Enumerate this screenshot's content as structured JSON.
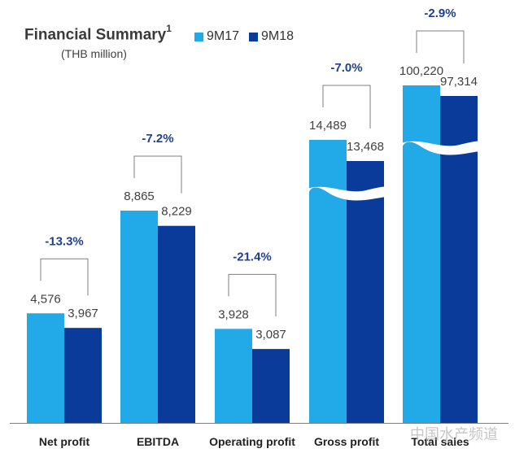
{
  "header": {
    "title": "Financial Summary",
    "title_sup": "1",
    "subtitle": "(THB million)"
  },
  "watermark": "中国水产频道",
  "colors": {
    "series_9M17": "#21a9e8",
    "series_9M18": "#0a3b9a",
    "bracket": "#7f7f7f",
    "pct_text": "#1f3f8f"
  },
  "chart_data": {
    "type": "bar",
    "categories": [
      "Net profit",
      "EBITDA",
      "Operating profit",
      "Gross profit",
      "Total sales"
    ],
    "series": [
      {
        "name": "9M17",
        "values": [
          4576,
          8865,
          3928,
          14489,
          100220
        ],
        "labels": [
          "4,576",
          "8,865",
          "3,928",
          "14,489",
          "100,220"
        ]
      },
      {
        "name": "9M18",
        "values": [
          3967,
          8229,
          3087,
          13468,
          97314
        ],
        "labels": [
          "3,967",
          "8,229",
          "3,087",
          "13,468",
          "97,314"
        ]
      }
    ],
    "changes": [
      "-13.3%",
      "-7.2%",
      "-21.4%",
      "-7.0%",
      "-2.9%"
    ],
    "axis_breaks": [
      "Gross profit",
      "Total sales"
    ],
    "legend_position": "top",
    "grid": false
  }
}
